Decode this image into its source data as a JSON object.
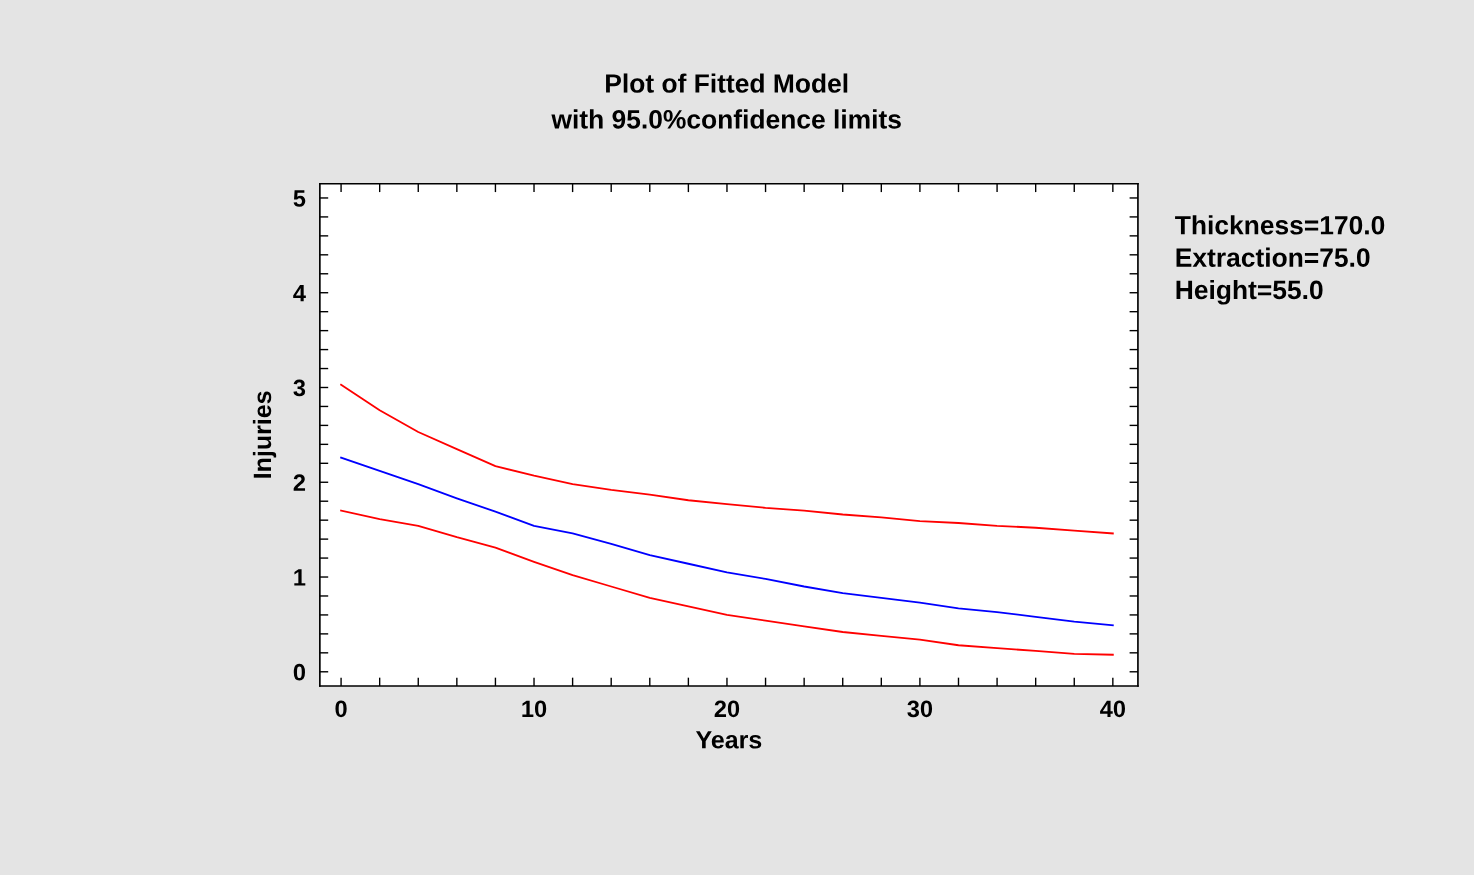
{
  "chart_data": {
    "type": "line",
    "title": "Plot of Fitted Model",
    "subtitle": "with 95.0%confidence limits",
    "xlabel": "Years",
    "ylabel": "Injuries",
    "annotations": [
      "Thickness=170.0",
      "Extraction=75.0",
      "Height=55.0"
    ],
    "x": [
      0,
      2,
      4,
      6,
      8,
      10,
      12,
      14,
      16,
      18,
      20,
      22,
      24,
      26,
      28,
      30,
      32,
      34,
      36,
      38,
      40
    ],
    "series": [
      {
        "color": "#ff0000",
        "values": [
          3.03,
          2.76,
          2.53,
          2.35,
          2.17,
          2.07,
          1.98,
          1.92,
          1.87,
          1.81,
          1.77,
          1.73,
          1.7,
          1.66,
          1.63,
          1.59,
          1.57,
          1.54,
          1.52,
          1.49,
          1.46
        ]
      },
      {
        "color": "#0000ff",
        "values": [
          2.26,
          2.12,
          1.98,
          1.83,
          1.69,
          1.54,
          1.46,
          1.35,
          1.23,
          1.14,
          1.05,
          0.98,
          0.9,
          0.83,
          0.78,
          0.73,
          0.67,
          0.63,
          0.58,
          0.53,
          0.49
        ]
      },
      {
        "color": "#ff0000",
        "values": [
          1.7,
          1.61,
          1.54,
          1.42,
          1.31,
          1.16,
          1.02,
          0.9,
          0.78,
          0.69,
          0.6,
          0.54,
          0.48,
          0.42,
          0.38,
          0.34,
          0.28,
          0.25,
          0.22,
          0.19,
          0.18
        ]
      }
    ],
    "xlim": [
      -1.1,
      41.3
    ],
    "ylim": [
      -0.15,
      5.15
    ],
    "xticks": [
      0,
      {
        "value": 2,
        "label": null
      },
      {
        "value": 4,
        "label": null
      },
      {
        "value": 6,
        "label": null
      },
      {
        "value": 8,
        "label": null
      },
      10,
      {
        "value": 12,
        "label": null
      },
      {
        "value": 14,
        "label": null
      },
      {
        "value": 16,
        "label": null
      },
      {
        "value": 18,
        "label": null
      },
      20,
      {
        "value": 22,
        "label": null
      },
      {
        "value": 24,
        "label": null
      },
      {
        "value": 26,
        "label": null
      },
      {
        "value": 28,
        "label": null
      },
      30,
      {
        "value": 32,
        "label": null
      },
      {
        "value": 34,
        "label": null
      },
      {
        "value": 36,
        "label": null
      },
      {
        "value": 38,
        "label": null
      },
      40
    ],
    "yticks": [
      0,
      {
        "value": 0.2,
        "label": null
      },
      {
        "value": 0.4,
        "label": null
      },
      {
        "value": 0.6,
        "label": null
      },
      {
        "value": 0.8,
        "label": null
      },
      1,
      {
        "value": 1.2,
        "label": null
      },
      {
        "value": 1.4,
        "label": null
      },
      {
        "value": 1.6,
        "label": null
      },
      {
        "value": 1.8,
        "label": null
      },
      2,
      {
        "value": 2.2,
        "label": null
      },
      {
        "value": 2.4,
        "label": null
      },
      {
        "value": 2.6,
        "label": null
      },
      {
        "value": 2.8,
        "label": null
      },
      3,
      {
        "value": 3.2,
        "label": null
      },
      {
        "value": 3.4,
        "label": null
      },
      {
        "value": 3.6,
        "label": null
      },
      {
        "value": 3.8,
        "label": null
      },
      4,
      {
        "value": 4.2,
        "label": null
      },
      {
        "value": 4.4,
        "label": null
      },
      {
        "value": 4.6,
        "label": null
      },
      {
        "value": 4.8,
        "label": null
      },
      5
    ],
    "grid": false,
    "marker": "none",
    "line_style": "solid"
  }
}
